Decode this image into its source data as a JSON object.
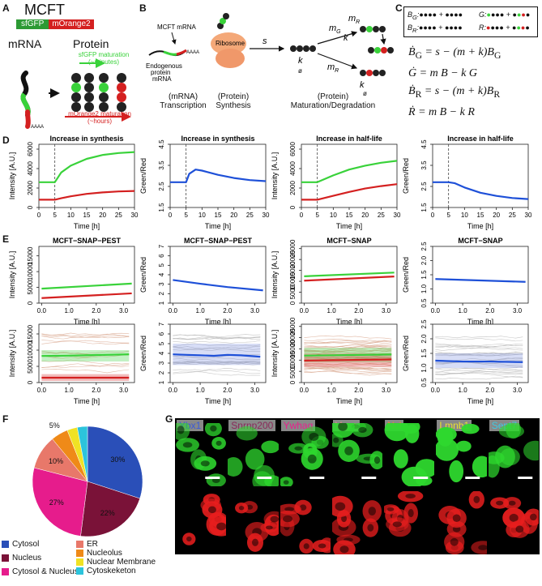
{
  "panel_labels": {
    "a": "A",
    "b": "B",
    "c": "C",
    "d": "D",
    "e": "E",
    "f": "F",
    "g": "G"
  },
  "panelA": {
    "title": "MCFT",
    "sfgfp": "sfGFP",
    "morange": "mOrange2",
    "mrna": "mRNA",
    "protein": "Protein",
    "sfgfp_mat": "sfGFP maturation",
    "sfgfp_time": "(~minutes)",
    "morange_mat": "mOrange2 maturation",
    "morange_time": "(~hours)",
    "polya": "AAAA"
  },
  "panelB": {
    "mcft_mrna": "MCFT mRNA",
    "ribosome": "Ribosome",
    "s": "s",
    "endog1": "Endogenous",
    "endog2": "protein",
    "endog3": "mRNA",
    "polya": "AAAA",
    "mg": "m",
    "mg_sub": "G",
    "mr": "m",
    "mr_sub": "R",
    "mr2": "m",
    "mr2_sub": "R",
    "k": "k",
    "deg": "ø",
    "cap1a": "(mRNA)",
    "cap1b": "Transcription",
    "cap2a": "(Protein)",
    "cap2b": "Synthesis",
    "cap3a": "(Protein)",
    "cap3b": "Maturation/Degradation"
  },
  "panelC": {
    "bg": "B",
    "bg_sub": "G",
    "g": "G",
    "br": "B",
    "br_sub": "R",
    "r": "R",
    "eq1": "= s − (m + k)B",
    "eq2": "= m B − k G",
    "eq3": "= s − (m + k)B",
    "eq4": "= m B − k R"
  },
  "panelD": [
    {
      "title": "Increase in synthesis",
      "ylabel": "Intensity [A.U.]",
      "xlabel": "Time [h]",
      "yticks": [
        "0",
        "2000",
        "4000",
        "6000"
      ],
      "xticks": [
        "0",
        "5",
        "10",
        "15",
        "20",
        "25",
        "30"
      ]
    },
    {
      "title": "Increase in synthesis",
      "ylabel": "Green/Red",
      "xlabel": "Time [h]",
      "yticks": [
        "1.5",
        "2.5",
        "3.5",
        "4.5"
      ],
      "xticks": [
        "0",
        "5",
        "10",
        "15",
        "20",
        "25",
        "30"
      ]
    },
    {
      "title": "Increase in half-life",
      "ylabel": "Intensity [A.U.]",
      "xlabel": "Time [h]",
      "yticks": [
        "0",
        "2000",
        "4000",
        "6000"
      ],
      "xticks": [
        "0",
        "5",
        "10",
        "15",
        "20",
        "25",
        "30"
      ]
    },
    {
      "title": "Increase in half-life",
      "ylabel": "Green/Red",
      "xlabel": "Time [h]",
      "yticks": [
        "1.5",
        "2.5",
        "3.5",
        "4.5"
      ],
      "xticks": [
        "0",
        "5",
        "10",
        "15",
        "20",
        "25",
        "30"
      ]
    }
  ],
  "panelE": [
    {
      "title": "MCFT−SNAP−PEST",
      "ylabel": "Intensity [A.U.]",
      "xlabel": "Time [h]",
      "yticks": [
        "0",
        "5000",
        "10000",
        "15000"
      ],
      "xticks": [
        "0.0",
        "1.0",
        "2.0",
        "3.0"
      ]
    },
    {
      "title": "MCFT−SNAP−PEST",
      "ylabel": "Green/Red",
      "xlabel": "Time [h]",
      "yticks": [
        "1",
        "2",
        "3",
        "4",
        "5",
        "6",
        "7"
      ],
      "xticks": [
        "0.0",
        "1.0",
        "2.0",
        "3.0"
      ]
    },
    {
      "title": "MCFT−SNAP",
      "ylabel": "Intensity [A.U.]",
      "xlabel": "Time [h]",
      "yticks": [
        "0",
        "5000",
        "10000",
        "15000",
        "20000",
        "25000"
      ],
      "xticks": [
        "0.0",
        "1.0",
        "2.0",
        "3.0"
      ]
    },
    {
      "title": "MCFT−SNAP",
      "ylabel": "Green/Red",
      "xlabel": "Time [h]",
      "yticks": [
        "0.5",
        "1.0",
        "1.5",
        "2.0",
        "2.5"
      ],
      "xticks": [
        "0.0",
        "1.0",
        "2.0",
        "3.0"
      ]
    },
    {
      "title": "",
      "ylabel": "Intensity [A.U.]",
      "xlabel": "Time [h]",
      "yticks": [
        "0",
        "5000",
        "10000",
        "15000"
      ],
      "xticks": [
        "0.0",
        "1.0",
        "2.0",
        "3.0"
      ]
    },
    {
      "title": "",
      "ylabel": "Green/Red",
      "xlabel": "Time [h]",
      "yticks": [
        "1",
        "2",
        "3",
        "4",
        "5",
        "6",
        "7"
      ],
      "xticks": [
        "0.0",
        "1.0",
        "2.0",
        "3.0"
      ]
    },
    {
      "title": "",
      "ylabel": "Intensity [A.U.]",
      "xlabel": "Time [h]",
      "yticks": [
        "0",
        "5000",
        "10000",
        "15000",
        "20000",
        "25000"
      ],
      "xticks": [
        "0.0",
        "1.0",
        "2.0",
        "3.0"
      ]
    },
    {
      "title": "",
      "ylabel": "Green/Red",
      "xlabel": "Time [h]",
      "yticks": [
        "0.5",
        "1.0",
        "1.5",
        "2.0",
        "2.5"
      ],
      "xticks": [
        "0.0",
        "1.0",
        "2.0",
        "3.0"
      ]
    }
  ],
  "chart_data": [
    {
      "type": "line",
      "title": "Increase in synthesis",
      "xlabel": "Time [h]",
      "ylabel": "Intensity [A.U.]",
      "xlim": [
        0,
        30
      ],
      "ylim": [
        0,
        6500
      ],
      "series": [
        {
          "color": "#39d23a",
          "x": [
            0,
            5,
            7,
            10,
            15,
            20,
            25,
            30
          ],
          "values": [
            2600,
            2600,
            3600,
            4300,
            5000,
            5400,
            5600,
            5700
          ]
        },
        {
          "color": "#d42020",
          "x": [
            0,
            5,
            7,
            10,
            15,
            20,
            25,
            30
          ],
          "values": [
            800,
            800,
            950,
            1150,
            1400,
            1550,
            1650,
            1700
          ]
        }
      ],
      "vline": 5
    },
    {
      "type": "line",
      "title": "Increase in synthesis",
      "xlabel": "Time [h]",
      "ylabel": "Green/Red",
      "xlim": [
        0,
        30
      ],
      "ylim": [
        1.5,
        4.5
      ],
      "series": [
        {
          "color": "#1e50d8",
          "x": [
            0,
            5,
            6,
            8,
            10,
            15,
            20,
            25,
            30
          ],
          "values": [
            2.7,
            2.7,
            3.1,
            3.3,
            3.25,
            3.05,
            2.9,
            2.8,
            2.75
          ]
        }
      ],
      "vline": 5
    },
    {
      "type": "line",
      "title": "Increase in half-life",
      "xlabel": "Time [h]",
      "ylabel": "Intensity [A.U.]",
      "xlim": [
        0,
        30
      ],
      "ylim": [
        0,
        6500
      ],
      "series": [
        {
          "color": "#39d23a",
          "x": [
            0,
            5,
            10,
            15,
            20,
            25,
            30
          ],
          "values": [
            2600,
            2600,
            3300,
            3900,
            4300,
            4600,
            4800
          ]
        },
        {
          "color": "#d42020",
          "x": [
            0,
            5,
            10,
            15,
            20,
            25,
            30
          ],
          "values": [
            800,
            800,
            1200,
            1600,
            1950,
            2200,
            2400
          ]
        }
      ],
      "vline": 5
    },
    {
      "type": "line",
      "title": "Increase in half-life",
      "xlabel": "Time [h]",
      "ylabel": "Green/Red",
      "xlim": [
        0,
        30
      ],
      "ylim": [
        1.5,
        4.5
      ],
      "series": [
        {
          "color": "#1e50d8",
          "x": [
            0,
            5,
            7,
            10,
            15,
            20,
            25,
            30
          ],
          "values": [
            2.7,
            2.7,
            2.65,
            2.45,
            2.2,
            2.05,
            1.95,
            1.9
          ]
        }
      ],
      "vline": 5
    },
    {
      "type": "line",
      "title": "MCFT−SNAP−PEST",
      "xlabel": "Time [h]",
      "ylabel": "Intensity [A.U.]",
      "xlim": [
        -0.1,
        3.4
      ],
      "ylim": [
        0,
        18000
      ],
      "series": [
        {
          "color": "#39d23a",
          "x": [
            0,
            3.3
          ],
          "values": [
            4600,
            6200
          ]
        },
        {
          "color": "#d42020",
          "x": [
            0,
            3.3
          ],
          "values": [
            1600,
            3100
          ]
        }
      ]
    },
    {
      "type": "line",
      "title": "MCFT−SNAP−PEST",
      "xlabel": "Time [h]",
      "ylabel": "Green/Red",
      "xlim": [
        -0.1,
        3.4
      ],
      "ylim": [
        1,
        7
      ],
      "series": [
        {
          "color": "#1e50d8",
          "x": [
            0,
            1,
            2,
            3.3
          ],
          "values": [
            3.45,
            3.05,
            2.7,
            2.35
          ]
        }
      ]
    },
    {
      "type": "line",
      "title": "MCFT−SNAP",
      "xlabel": "Time [h]",
      "ylabel": "Intensity [A.U.]",
      "xlim": [
        -0.1,
        3.4
      ],
      "ylim": [
        0,
        26000
      ],
      "series": [
        {
          "color": "#39d23a",
          "x": [
            0,
            3.3
          ],
          "values": [
            12300,
            14000
          ]
        },
        {
          "color": "#d42020",
          "x": [
            0,
            3.3
          ],
          "values": [
            10300,
            12200
          ]
        }
      ]
    },
    {
      "type": "line",
      "title": "MCFT−SNAP",
      "xlabel": "Time [h]",
      "ylabel": "Green/Red",
      "xlim": [
        -0.1,
        3.4
      ],
      "ylim": [
        0.5,
        2.5
      ],
      "series": [
        {
          "color": "#1e50d8",
          "x": [
            0,
            3.3
          ],
          "values": [
            1.35,
            1.25
          ]
        }
      ]
    },
    {
      "type": "line",
      "xlabel": "Time [h]",
      "ylabel": "Intensity [A.U.]",
      "xlim": [
        -0.1,
        3.4
      ],
      "ylim": [
        0,
        18000
      ],
      "series": [
        {
          "color": "#39d23a",
          "x": [
            0,
            1,
            2,
            3.2
          ],
          "values": [
            8200,
            8300,
            8500,
            8700
          ]
        },
        {
          "color": "#d42020",
          "x": [
            0,
            1,
            2,
            3.2
          ],
          "values": [
            1500,
            1500,
            1500,
            1500
          ]
        }
      ],
      "bands": [
        {
          "color": "#39d23a",
          "lo": 6500,
          "hi": 10000
        },
        {
          "color": "#d42020",
          "lo": 500,
          "hi": 2600
        }
      ],
      "faint_lines": {
        "count": 14,
        "color": "#d8a58c",
        "range": [
          3000,
          16500
        ]
      }
    },
    {
      "type": "line",
      "xlabel": "Time [h]",
      "ylabel": "Green/Red",
      "xlim": [
        -0.1,
        3.4
      ],
      "ylim": [
        1,
        7
      ],
      "series": [
        {
          "color": "#1e50d8",
          "x": [
            0,
            0.5,
            1,
            1.5,
            2,
            2.5,
            3,
            3.2
          ],
          "values": [
            3.9,
            3.85,
            3.8,
            3.75,
            3.85,
            3.8,
            3.7,
            3.65
          ]
        }
      ],
      "bands": [
        {
          "color": "#7a90e0",
          "lo": 2.8,
          "hi": 5.0
        }
      ],
      "faint_lines": {
        "count": 22,
        "color": "#b8b8b8",
        "range": [
          2.0,
          6.5
        ]
      }
    },
    {
      "type": "line",
      "xlabel": "Time [h]",
      "ylabel": "Intensity [A.U.]",
      "xlim": [
        -0.1,
        3.4
      ],
      "ylim": [
        0,
        26000
      ],
      "series": [
        {
          "color": "#39d23a",
          "x": [
            0,
            3.2
          ],
          "values": [
            12000,
            12500
          ]
        },
        {
          "color": "#d42020",
          "x": [
            0,
            3.2
          ],
          "values": [
            9800,
            10300
          ]
        }
      ],
      "bands": [
        {
          "color": "#39d23a",
          "lo": 9000,
          "hi": 15500
        },
        {
          "color": "#d42020",
          "lo": 7000,
          "hi": 13000
        }
      ],
      "faint_lines": {
        "count": 30,
        "color": "#d8a58c",
        "range": [
          4000,
          21000
        ]
      }
    },
    {
      "type": "line",
      "xlabel": "Time [h]",
      "ylabel": "Green/Red",
      "xlim": [
        -0.1,
        3.4
      ],
      "ylim": [
        0.5,
        2.5
      ],
      "series": [
        {
          "color": "#1e50d8",
          "x": [
            0,
            1,
            2,
            3.2
          ],
          "values": [
            1.25,
            1.22,
            1.22,
            1.2
          ]
        }
      ],
      "bands": [
        {
          "color": "#7a90e0",
          "lo": 1.0,
          "hi": 1.5
        }
      ],
      "faint_lines": {
        "count": 26,
        "color": "#b8b8b8",
        "range": [
          0.65,
          2.05
        ]
      }
    },
    {
      "type": "pie",
      "title": "",
      "categories": [
        "Cytosol",
        "Nucleus",
        "Cytosol & Nucleus",
        "ER",
        "Nucleolus",
        "Nuclear Membrane",
        "Cytoskeketon"
      ],
      "values": [
        30,
        22,
        27,
        10,
        5,
        3,
        3
      ],
      "colors": [
        "#2a4fb8",
        "#7a1238",
        "#e61c8c",
        "#e8786a",
        "#ef8a18",
        "#f0e224",
        "#2cc4dc"
      ],
      "labels": [
        "30%",
        "22%",
        "27%",
        "10%",
        "5%",
        "3%",
        "3%"
      ]
    }
  ],
  "panelF": {
    "legend": [
      {
        "label": "Cytosol",
        "color": "#2a4fb8"
      },
      {
        "label": "Nucleus",
        "color": "#7a1238"
      },
      {
        "label": "Cytosol & Nucleus",
        "color": "#e61c8c"
      },
      {
        "label": "ER",
        "color": "#e8786a"
      },
      {
        "label": "Nucleolus",
        "color": "#ef8a18"
      },
      {
        "label": "Nuclear Membrane",
        "color": "#f0e224"
      },
      {
        "label": "Cytoskeketon",
        "color": "#2cc4dc"
      }
    ]
  },
  "panelG": {
    "proteins": [
      {
        "name": "Ybx1",
        "color": "#3a5ad8"
      },
      {
        "name": "Snrnp200",
        "color": "#8a2a5a"
      },
      {
        "name": "Ywhaq",
        "color": "#e8208c"
      },
      {
        "name": "Vapa",
        "color": "#f08a84"
      },
      {
        "name": "Ncl",
        "color": "#f08a2a"
      },
      {
        "name": "Lmnb1",
        "color": "#e8e030"
      },
      {
        "name": "Sept7",
        "color": "#40c8e0"
      }
    ]
  }
}
